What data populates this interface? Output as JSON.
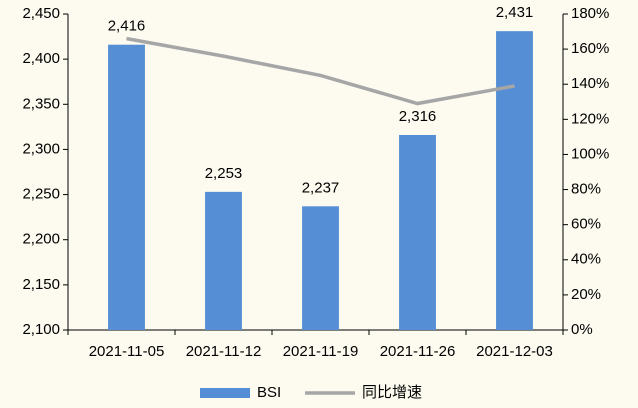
{
  "chart_data": {
    "type": "bar_line",
    "categories": [
      "2021-11-05",
      "2021-11-12",
      "2021-11-19",
      "2021-11-26",
      "2021-12-03"
    ],
    "series": [
      {
        "name": "BSI",
        "color": "#558ed5",
        "values": [
          2416,
          2253,
          2237,
          2316,
          2431
        ],
        "value_labels": [
          "2,416",
          "2,253",
          "2,237",
          "2,316",
          "2,431"
        ]
      },
      {
        "name": "同比增速",
        "color": "#a6a6a6",
        "axis": "y2",
        "values": [
          166,
          156,
          145,
          129,
          139
        ]
      }
    ],
    "ylim": [
      2100,
      2450
    ],
    "yticks": [
      {
        "value": 2100,
        "label": "2,100"
      },
      {
        "value": 2150,
        "label": "2,150"
      },
      {
        "value": 2200,
        "label": "2,200"
      },
      {
        "value": 2250,
        "label": "2,250"
      },
      {
        "value": 2300,
        "label": "2,300"
      },
      {
        "value": 2350,
        "label": "2,350"
      },
      {
        "value": 2400,
        "label": "2,400"
      },
      {
        "value": 2450,
        "label": "2,450"
      }
    ],
    "y2lim": [
      0,
      180
    ],
    "y2ticks": [
      {
        "value": 0,
        "label": "0%"
      },
      {
        "value": 20,
        "label": "20%"
      },
      {
        "value": 40,
        "label": "40%"
      },
      {
        "value": 60,
        "label": "60%"
      },
      {
        "value": 80,
        "label": "80%"
      },
      {
        "value": 100,
        "label": "100%"
      },
      {
        "value": 120,
        "label": "120%"
      },
      {
        "value": 140,
        "label": "140%"
      },
      {
        "value": 160,
        "label": "160%"
      },
      {
        "value": 180,
        "label": "180%"
      }
    ]
  }
}
